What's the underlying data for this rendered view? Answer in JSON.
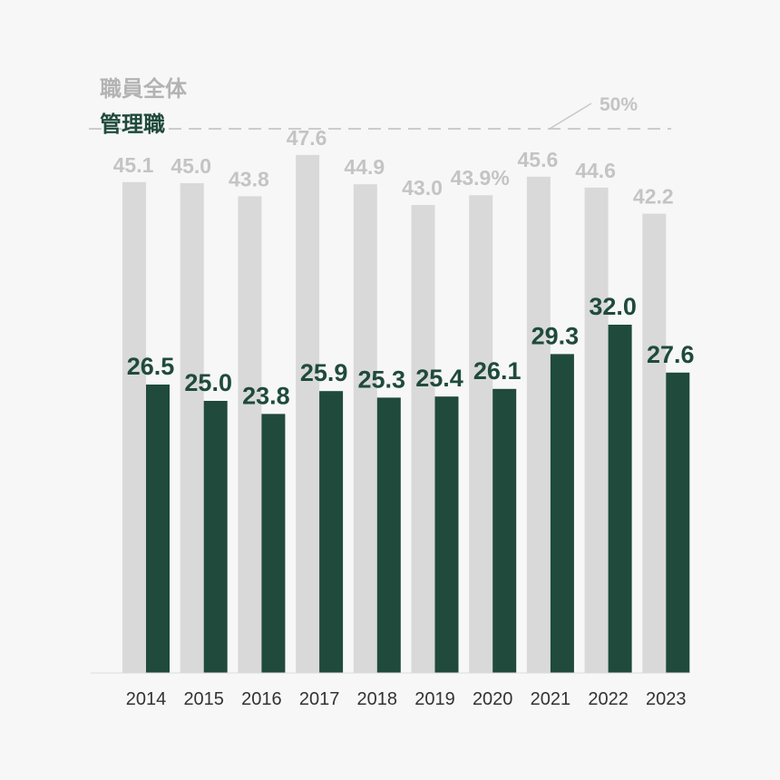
{
  "chart_data": {
    "type": "bar",
    "categories": [
      "2014",
      "2015",
      "2016",
      "2017",
      "2018",
      "2019",
      "2020",
      "2021",
      "2022",
      "2023"
    ],
    "series": [
      {
        "name": "職員全体",
        "values": [
          45.1,
          45.0,
          43.8,
          47.6,
          44.9,
          43.0,
          43.9,
          45.6,
          44.6,
          42.2
        ],
        "color": "#d9d9d9",
        "label_color": "#c4c4c4"
      },
      {
        "name": "管理職",
        "values": [
          26.5,
          25.0,
          23.8,
          25.9,
          25.3,
          25.4,
          26.1,
          29.3,
          32.0,
          27.6
        ],
        "color": "#1f4a3c",
        "label_color": "#1f4a3c"
      }
    ],
    "value_labels_all": [
      "45.1",
      "45.0",
      "43.8",
      "47.6",
      "44.9",
      "43.0",
      "43.9%",
      "45.6",
      "44.6",
      "42.2"
    ],
    "value_labels_mgr": [
      "26.5",
      "25.0",
      "23.8",
      "25.9",
      "25.3",
      "25.4",
      "26.1",
      "29.3",
      "32.0",
      "27.6"
    ],
    "reference_line": {
      "value": 50,
      "label": "50%",
      "style": "dashed"
    },
    "ylim": [
      0,
      50
    ],
    "legend": "top-left",
    "grid": false
  }
}
